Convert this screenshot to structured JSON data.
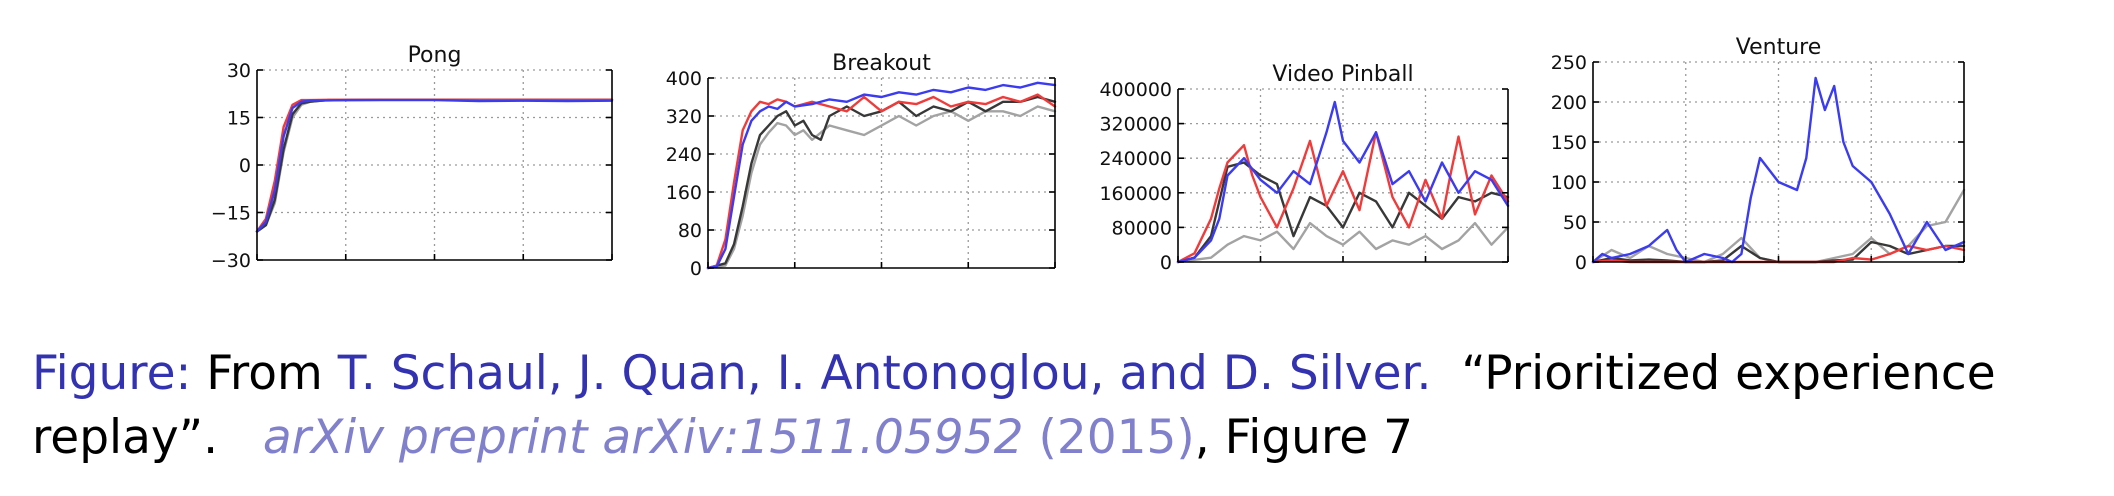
{
  "colors": {
    "blue": "#3b3bf0",
    "red": "#f03b3b",
    "gray": "#a3a3a3",
    "black": "#383838",
    "caption_blue": "#3333b2",
    "caption_light": "#8080cc"
  },
  "chart_data": [
    {
      "type": "line",
      "title": "Pong",
      "ylim": [
        -30,
        30
      ],
      "yticks": [
        "30",
        "15",
        "0",
        "−15",
        "−30"
      ],
      "ytick_values": [
        30,
        15,
        0,
        -15,
        -30
      ],
      "xlim": [
        0,
        40
      ],
      "xtick_values": [
        0,
        10,
        20,
        30,
        40
      ],
      "grid": true,
      "series": [
        {
          "color": "gray",
          "x": [
            0,
            1,
            2,
            3,
            4,
            5,
            6,
            8,
            10,
            15,
            20,
            25,
            30,
            35,
            40
          ],
          "y": [
            -21,
            -19,
            -12,
            4,
            15,
            19,
            20,
            20.5,
            20.5,
            20.6,
            20.6,
            20.6,
            20.6,
            20.6,
            20.6
          ]
        },
        {
          "color": "black",
          "x": [
            0,
            1,
            2,
            3,
            4,
            5,
            6,
            8,
            10,
            15,
            20,
            25,
            30,
            35,
            40
          ],
          "y": [
            -21,
            -19,
            -11,
            5,
            16,
            19.5,
            20,
            20.5,
            20.5,
            20.6,
            20.6,
            20.6,
            20.6,
            20.6,
            20.6
          ]
        },
        {
          "color": "red",
          "x": [
            0,
            1,
            2,
            3,
            4,
            5,
            6,
            8,
            10,
            15,
            20,
            25,
            30,
            35,
            40
          ],
          "y": [
            -21,
            -17,
            -5,
            12,
            19,
            20.5,
            20.5,
            20.6,
            20.6,
            20.6,
            20.6,
            20.6,
            20.6,
            20.6,
            20.6
          ]
        },
        {
          "color": "blue",
          "x": [
            0,
            1,
            2,
            3,
            4,
            5,
            6,
            8,
            10,
            15,
            20,
            25,
            30,
            35,
            40
          ],
          "y": [
            -21,
            -18,
            -8,
            9,
            18,
            20,
            20.3,
            20.4,
            20.5,
            20.5,
            20.5,
            20.2,
            20.3,
            20.2,
            20.3
          ]
        }
      ]
    },
    {
      "type": "line",
      "title": "Breakout",
      "ylim": [
        0,
        400
      ],
      "yticks": [
        "400",
        "320",
        "240",
        "160",
        "80",
        "0"
      ],
      "ytick_values": [
        400,
        320,
        240,
        160,
        80,
        0
      ],
      "xlim": [
        0,
        40
      ],
      "xtick_values": [
        0,
        10,
        20,
        30,
        40
      ],
      "grid": true,
      "series": [
        {
          "color": "gray",
          "x": [
            0,
            2,
            3,
            4,
            5,
            6,
            7,
            8,
            9,
            10,
            11,
            12,
            14,
            16,
            18,
            20,
            22,
            24,
            26,
            28,
            30,
            32,
            34,
            36,
            38,
            40
          ],
          "y": [
            0,
            5,
            40,
            110,
            200,
            260,
            285,
            305,
            300,
            280,
            290,
            270,
            300,
            290,
            280,
            300,
            320,
            300,
            320,
            330,
            310,
            330,
            330,
            320,
            340,
            330
          ]
        },
        {
          "color": "black",
          "x": [
            0,
            2,
            3,
            4,
            5,
            6,
            7,
            8,
            9,
            10,
            11,
            12,
            13,
            14,
            16,
            18,
            20,
            22,
            24,
            26,
            28,
            30,
            32,
            34,
            36,
            38,
            40
          ],
          "y": [
            0,
            10,
            50,
            130,
            220,
            280,
            300,
            320,
            330,
            300,
            310,
            280,
            270,
            320,
            340,
            320,
            330,
            350,
            320,
            340,
            330,
            350,
            330,
            350,
            350,
            360,
            350
          ]
        },
        {
          "color": "red",
          "x": [
            0,
            1,
            2,
            3,
            4,
            5,
            6,
            7,
            8,
            9,
            10,
            12,
            14,
            16,
            18,
            20,
            22,
            24,
            26,
            28,
            30,
            32,
            34,
            36,
            38,
            40
          ],
          "y": [
            0,
            5,
            60,
            180,
            290,
            330,
            350,
            345,
            355,
            350,
            340,
            350,
            340,
            330,
            360,
            330,
            350,
            345,
            360,
            340,
            350,
            345,
            360,
            350,
            365,
            340
          ]
        },
        {
          "color": "blue",
          "x": [
            0,
            1,
            2,
            3,
            4,
            5,
            6,
            7,
            8,
            9,
            10,
            12,
            14,
            16,
            18,
            20,
            22,
            24,
            26,
            28,
            30,
            32,
            34,
            36,
            38,
            40
          ],
          "y": [
            0,
            3,
            40,
            150,
            260,
            310,
            330,
            340,
            335,
            350,
            340,
            345,
            355,
            350,
            365,
            360,
            370,
            365,
            375,
            370,
            380,
            375,
            385,
            380,
            390,
            385
          ]
        }
      ]
    },
    {
      "type": "line",
      "title": "Video Pinball",
      "ylim": [
        0,
        400000
      ],
      "yticks": [
        "400000",
        "320000",
        "240000",
        "160000",
        "80000",
        "0"
      ],
      "ytick_values": [
        400000,
        320000,
        240000,
        160000,
        80000,
        0
      ],
      "xlim": [
        0,
        40
      ],
      "xtick_values": [
        0,
        10,
        20,
        30,
        40
      ],
      "grid": true,
      "series": [
        {
          "color": "gray",
          "x": [
            0,
            2,
            4,
            6,
            8,
            10,
            12,
            14,
            16,
            18,
            20,
            22,
            24,
            26,
            28,
            30,
            32,
            34,
            36,
            38,
            40
          ],
          "y": [
            0,
            5000,
            10000,
            40000,
            60000,
            50000,
            70000,
            30000,
            90000,
            60000,
            40000,
            70000,
            30000,
            50000,
            40000,
            60000,
            30000,
            50000,
            90000,
            40000,
            80000
          ]
        },
        {
          "color": "black",
          "x": [
            0,
            2,
            4,
            5,
            6,
            8,
            10,
            12,
            14,
            16,
            18,
            20,
            22,
            24,
            26,
            28,
            30,
            32,
            34,
            36,
            38,
            40
          ],
          "y": [
            0,
            10000,
            60000,
            140000,
            220000,
            230000,
            200000,
            180000,
            60000,
            150000,
            130000,
            80000,
            160000,
            140000,
            80000,
            160000,
            130000,
            100000,
            150000,
            140000,
            160000,
            150000
          ]
        },
        {
          "color": "red",
          "x": [
            0,
            2,
            4,
            5,
            6,
            8,
            9,
            10,
            12,
            14,
            16,
            18,
            20,
            22,
            24,
            26,
            28,
            30,
            32,
            33,
            34,
            36,
            38,
            40
          ],
          "y": [
            0,
            20000,
            100000,
            170000,
            230000,
            270000,
            200000,
            150000,
            80000,
            170000,
            280000,
            130000,
            210000,
            120000,
            300000,
            150000,
            80000,
            190000,
            100000,
            200000,
            290000,
            110000,
            200000,
            140000
          ]
        },
        {
          "color": "blue",
          "x": [
            0,
            2,
            4,
            5,
            6,
            8,
            10,
            12,
            14,
            16,
            18,
            19,
            20,
            22,
            24,
            26,
            28,
            30,
            32,
            34,
            36,
            38,
            40
          ],
          "y": [
            0,
            10000,
            50000,
            100000,
            200000,
            240000,
            190000,
            160000,
            210000,
            180000,
            300000,
            370000,
            280000,
            230000,
            300000,
            180000,
            210000,
            140000,
            230000,
            160000,
            210000,
            190000,
            130000
          ]
        }
      ]
    },
    {
      "type": "line",
      "title": "Venture",
      "ylim": [
        0,
        250
      ],
      "yticks": [
        "250",
        "200",
        "150",
        "100",
        "50",
        "0"
      ],
      "ytick_values": [
        250,
        200,
        150,
        100,
        50,
        0
      ],
      "xlim": [
        0,
        40
      ],
      "xtick_values": [
        0,
        10,
        20,
        30,
        40
      ],
      "grid": true,
      "series": [
        {
          "color": "gray",
          "x": [
            0,
            2,
            4,
            6,
            8,
            10,
            12,
            14,
            16,
            18,
            20,
            22,
            24,
            26,
            28,
            30,
            32,
            34,
            36,
            38,
            40
          ],
          "y": [
            0,
            15,
            5,
            20,
            10,
            5,
            0,
            10,
            30,
            5,
            0,
            0,
            0,
            5,
            10,
            30,
            10,
            20,
            45,
            50,
            90
          ]
        },
        {
          "color": "black",
          "x": [
            0,
            2,
            4,
            6,
            8,
            10,
            12,
            14,
            16,
            18,
            20,
            22,
            24,
            26,
            28,
            30,
            32,
            34,
            36,
            38,
            40
          ],
          "y": [
            0,
            5,
            2,
            3,
            2,
            0,
            0,
            2,
            20,
            5,
            0,
            0,
            0,
            2,
            3,
            25,
            20,
            10,
            15,
            20,
            20
          ]
        },
        {
          "color": "red",
          "x": [
            0,
            2,
            4,
            6,
            8,
            10,
            12,
            14,
            16,
            18,
            20,
            22,
            24,
            26,
            28,
            30,
            32,
            34,
            36,
            38,
            40
          ],
          "y": [
            0,
            2,
            0,
            0,
            0,
            0,
            0,
            0,
            0,
            0,
            0,
            0,
            0,
            0,
            5,
            3,
            10,
            20,
            15,
            20,
            15
          ]
        },
        {
          "color": "blue",
          "x": [
            0,
            1,
            2,
            4,
            6,
            8,
            9,
            10,
            12,
            14,
            15,
            16,
            17,
            18,
            20,
            22,
            23,
            24,
            25,
            26,
            27,
            28,
            30,
            32,
            34,
            36,
            38,
            40
          ],
          "y": [
            0,
            10,
            5,
            10,
            20,
            40,
            15,
            0,
            10,
            5,
            0,
            10,
            80,
            130,
            100,
            90,
            130,
            230,
            190,
            220,
            150,
            120,
            100,
            60,
            10,
            50,
            15,
            25
          ]
        }
      ]
    }
  ],
  "caption": {
    "figure_label": "Figure:",
    "from": "From",
    "authors": "T. Schaul, J. Quan, I. Antonoglou, and D. Silver.",
    "title": "“Prioritized experience replay”.",
    "venue": "arXiv preprint arXiv:1511.05952",
    "year_paren": "(2015)",
    "tail": ", Figure 7"
  }
}
